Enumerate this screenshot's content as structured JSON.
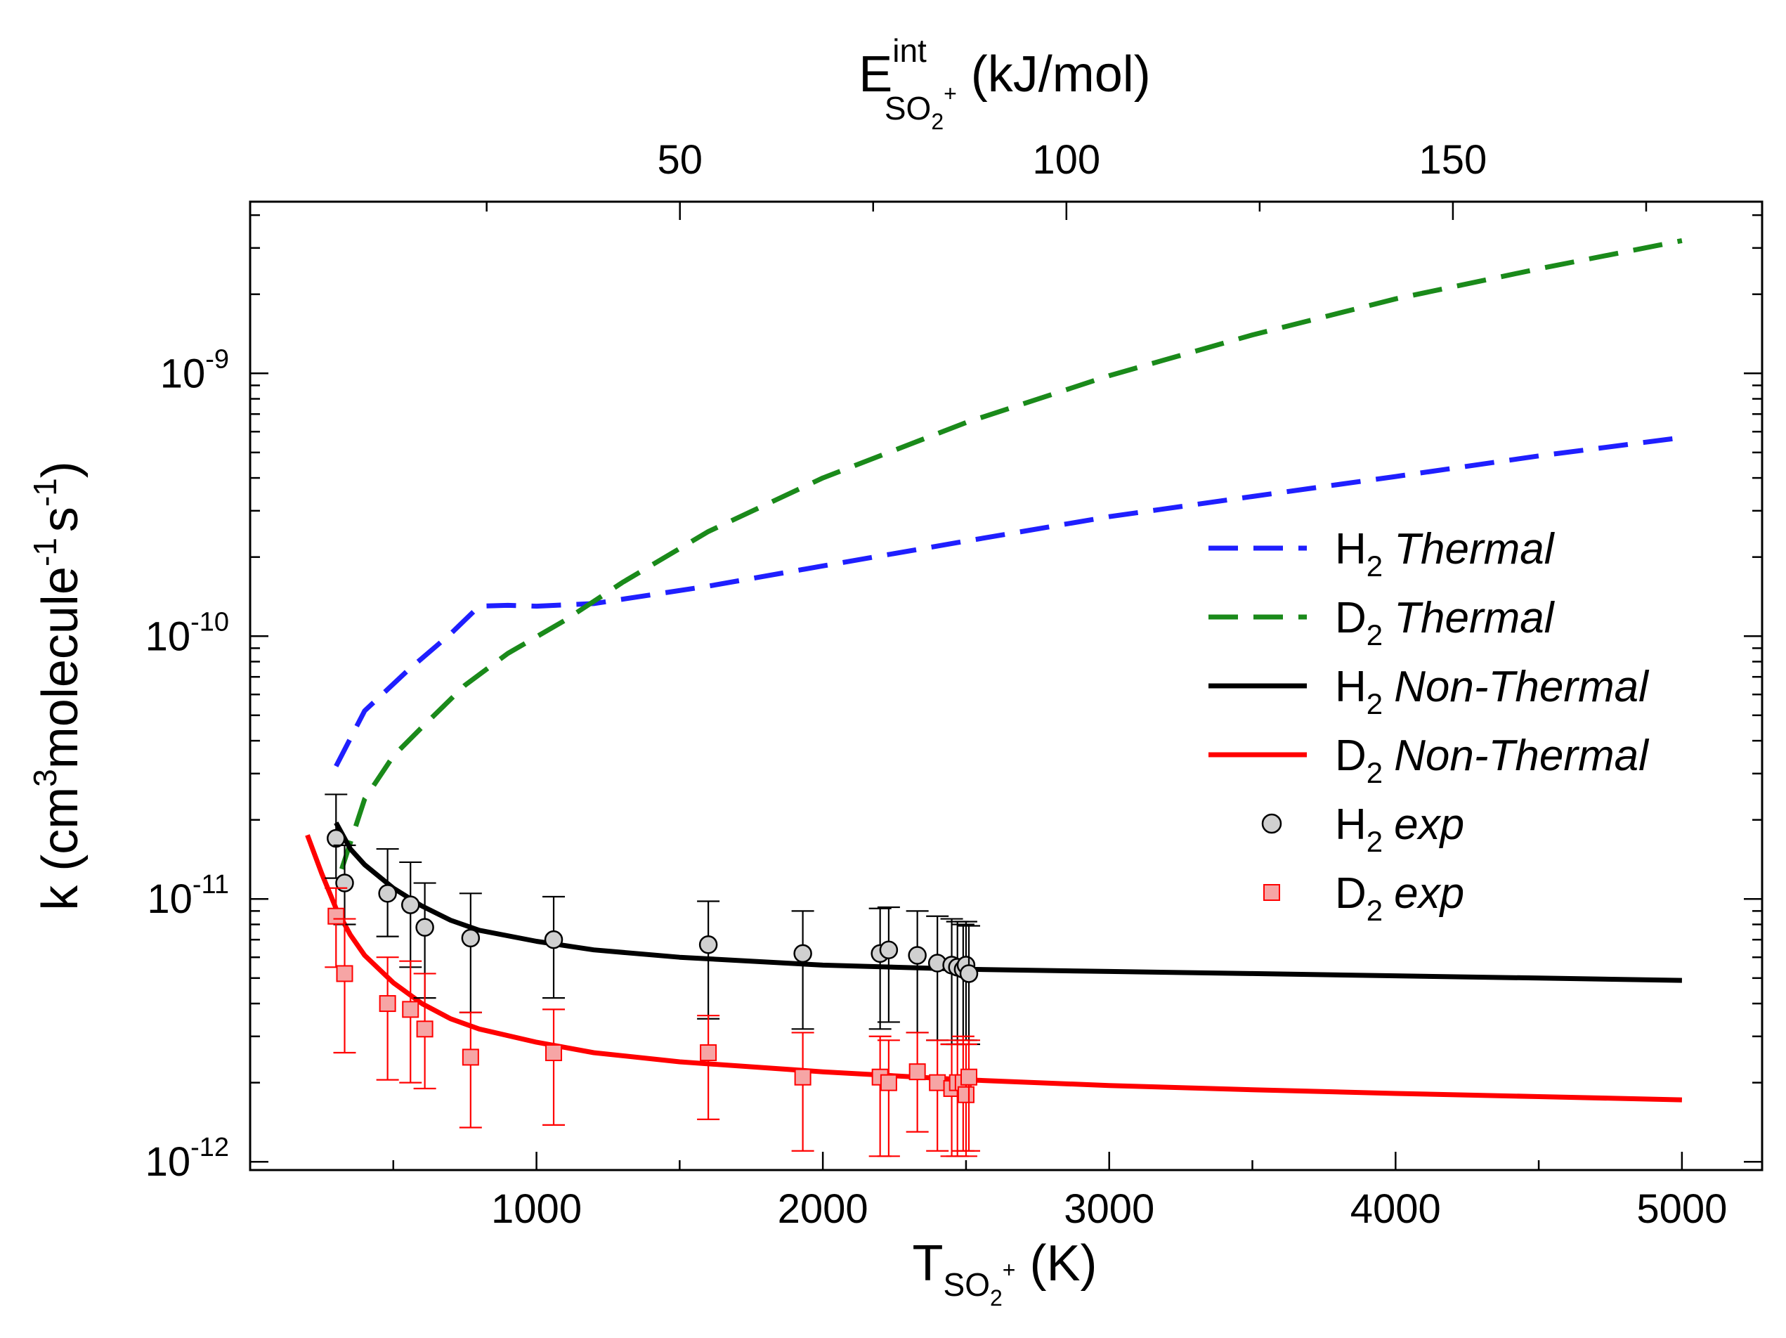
{
  "chart_data": {
    "type": "line",
    "title": "",
    "xlabel": {
      "base": "T",
      "sub": "SO",
      "sub2": "2",
      "sup": "+",
      "unit": " (K)"
    },
    "x2label": {
      "base": "E",
      "sup": "int",
      "sub": "SO",
      "sub2": "2",
      "sup2": "+",
      "unit": " (kJ/mol)"
    },
    "ylabel": {
      "t1": "k (cm",
      "s1": "3",
      "t2": "molecule",
      "s2": "-1",
      "t3": "s",
      "s3": "-1",
      "t4": ")"
    },
    "xlim": [
      0,
      5280
    ],
    "x2lim": [
      -5.6,
      190
    ],
    "ylog": true,
    "ylim": [
      9.3e-13,
      4.5e-09
    ],
    "x_ticks": [
      1000,
      2000,
      3000,
      4000,
      5000
    ],
    "x_tick_labels": [
      "1000",
      "2000",
      "3000",
      "4000",
      "5000"
    ],
    "x2_ticks": [
      50,
      100,
      150
    ],
    "x2_tick_labels": [
      "50",
      "100",
      "150"
    ],
    "y_ticks": [
      {
        "base": "10",
        "exp": "-12",
        "value": 1e-12
      },
      {
        "base": "10",
        "exp": "-11",
        "value": 1e-11
      },
      {
        "base": "10",
        "exp": "-10",
        "value": 1e-10
      },
      {
        "base": "10",
        "exp": "-9",
        "value": 1e-09
      }
    ],
    "series": [
      {
        "name": "H2 Thermal",
        "label": "H",
        "label_sub": "2",
        "label_em": "Thermal",
        "style": "dashed",
        "color": "#1f1fff",
        "x": [
          300,
          400,
          550,
          700,
          800,
          900,
          1000,
          1200,
          1600,
          2000,
          2500,
          3000,
          3500,
          4000,
          4500,
          5000
        ],
        "y": [
          3.2e-11,
          5.2e-11,
          7.4e-11,
          1.02e-10,
          1.3e-10,
          1.31e-10,
          1.3e-10,
          1.33e-10,
          1.55e-10,
          1.85e-10,
          2.3e-10,
          2.85e-10,
          3.4e-10,
          4.05e-10,
          4.85e-10,
          5.7e-10
        ]
      },
      {
        "name": "D2 Thermal",
        "label": "D",
        "label_sub": "2",
        "label_em": "Thermal",
        "style": "dashed",
        "color": "#1a8a1a",
        "x": [
          320,
          400,
          500,
          600,
          750,
          900,
          1100,
          1300,
          1600,
          2000,
          2500,
          3000,
          3500,
          4000,
          4500,
          5000
        ],
        "y": [
          1.3e-11,
          2.4e-11,
          3.5e-11,
          4.5e-11,
          6.5e-11,
          8.6e-11,
          1.15e-10,
          1.6e-10,
          2.5e-10,
          4e-10,
          6.5e-10,
          9.8e-10,
          1.4e-09,
          1.92e-09,
          2.5e-09,
          3.2e-09
        ]
      },
      {
        "name": "H2 Non-Thermal",
        "label": "H",
        "label_sub": "2",
        "label_em": "Non-Thermal",
        "style": "solid",
        "color": "#000000",
        "x": [
          300,
          350,
          400,
          500,
          600,
          700,
          800,
          1000,
          1200,
          1500,
          2000,
          2500,
          3000,
          3500,
          4000,
          4500,
          5000
        ],
        "y": [
          1.95e-11,
          1.55e-11,
          1.35e-11,
          1.1e-11,
          9.4e-12,
          8.3e-12,
          7.6e-12,
          6.9e-12,
          6.4e-12,
          6e-12,
          5.6e-12,
          5.4e-12,
          5.3e-12,
          5.2e-12,
          5.1e-12,
          5e-12,
          4.9e-12
        ]
      },
      {
        "name": "D2 Non-Thermal",
        "label": "D",
        "label_sub": "2",
        "label_em": "Non-Thermal",
        "style": "solid",
        "color": "#ff0000",
        "x": [
          200,
          250,
          300,
          350,
          400,
          500,
          600,
          700,
          800,
          1000,
          1200,
          1500,
          2000,
          2500,
          3000,
          3500,
          4000,
          4500,
          5000
        ],
        "y": [
          1.75e-11,
          1.25e-11,
          9.2e-12,
          7.3e-12,
          6.1e-12,
          4.8e-12,
          4e-12,
          3.5e-12,
          3.2e-12,
          2.85e-12,
          2.6e-12,
          2.4e-12,
          2.2e-12,
          2.05e-12,
          1.95e-12,
          1.88e-12,
          1.82e-12,
          1.77e-12,
          1.72e-12
        ]
      }
    ],
    "scatter": [
      {
        "name": "H2 exp",
        "label": "H",
        "label_sub": "2",
        "label_em": "exp",
        "marker": "circle",
        "color": "#d0d0d0",
        "edge": "#000000",
        "err_color": "#000000",
        "x": [
          300,
          330,
          480,
          560,
          610,
          770,
          1060,
          1600,
          1930,
          2200,
          2230,
          2330,
          2400,
          2450,
          2470,
          2490,
          2500,
          2510
        ],
        "y": [
          1.7e-11,
          1.15e-11,
          1.05e-11,
          9.5e-12,
          7.8e-12,
          7.1e-12,
          7e-12,
          6.7e-12,
          6.2e-12,
          6.2e-12,
          6.4e-12,
          6.1e-12,
          5.7e-12,
          5.6e-12,
          5.5e-12,
          5.4e-12,
          5.6e-12,
          5.2e-12
        ],
        "y_low": [
          1.2e-11,
          8e-12,
          7.2e-12,
          5.5e-12,
          4.2e-12,
          3.7e-12,
          4.2e-12,
          3.5e-12,
          3.2e-12,
          3.2e-12,
          3.4e-12,
          3.1e-12,
          2.9e-12,
          2.8e-12,
          2.8e-12,
          2.9e-12,
          2.9e-12,
          2.8e-12
        ],
        "y_high": [
          2.5e-11,
          1.6e-11,
          1.55e-11,
          1.38e-11,
          1.15e-11,
          1.05e-11,
          1.02e-11,
          9.8e-12,
          9e-12,
          9.2e-12,
          9.3e-12,
          9e-12,
          8.6e-12,
          8.4e-12,
          8.2e-12,
          8e-12,
          8.2e-12,
          7.9e-12
        ]
      },
      {
        "name": "D2 exp",
        "label": "D",
        "label_sub": "2",
        "label_em": "exp",
        "marker": "square",
        "color": "#f6a5a5",
        "edge": "#ff0000",
        "err_color": "#ff0000",
        "x": [
          300,
          330,
          480,
          560,
          610,
          770,
          1060,
          1600,
          1930,
          2200,
          2230,
          2330,
          2400,
          2450,
          2470,
          2490,
          2500,
          2510
        ],
        "y": [
          8.6e-12,
          5.2e-12,
          4e-12,
          3.8e-12,
          3.2e-12,
          2.5e-12,
          2.6e-12,
          2.6e-12,
          2.1e-12,
          2.1e-12,
          2e-12,
          2.2e-12,
          2e-12,
          1.9e-12,
          2e-12,
          2e-12,
          1.8e-12,
          2.1e-12
        ],
        "y_low": [
          5.5e-12,
          2.6e-12,
          2.05e-12,
          2e-12,
          1.9e-12,
          1.35e-12,
          1.38e-12,
          1.45e-12,
          1.1e-12,
          1.05e-12,
          1.05e-12,
          1.3e-12,
          1.1e-12,
          1.05e-12,
          1.05e-12,
          1.1e-12,
          1.05e-12,
          1.1e-12
        ],
        "y_high": [
          1.1e-11,
          8.4e-12,
          6e-12,
          5.8e-12,
          5.2e-12,
          3.7e-12,
          3.8e-12,
          3.6e-12,
          3.1e-12,
          3e-12,
          2.9e-12,
          3.1e-12,
          2.9e-12,
          2.8e-12,
          2.9e-12,
          3e-12,
          2.8e-12,
          2.9e-12
        ]
      }
    ],
    "legend_position": "right-middle"
  }
}
